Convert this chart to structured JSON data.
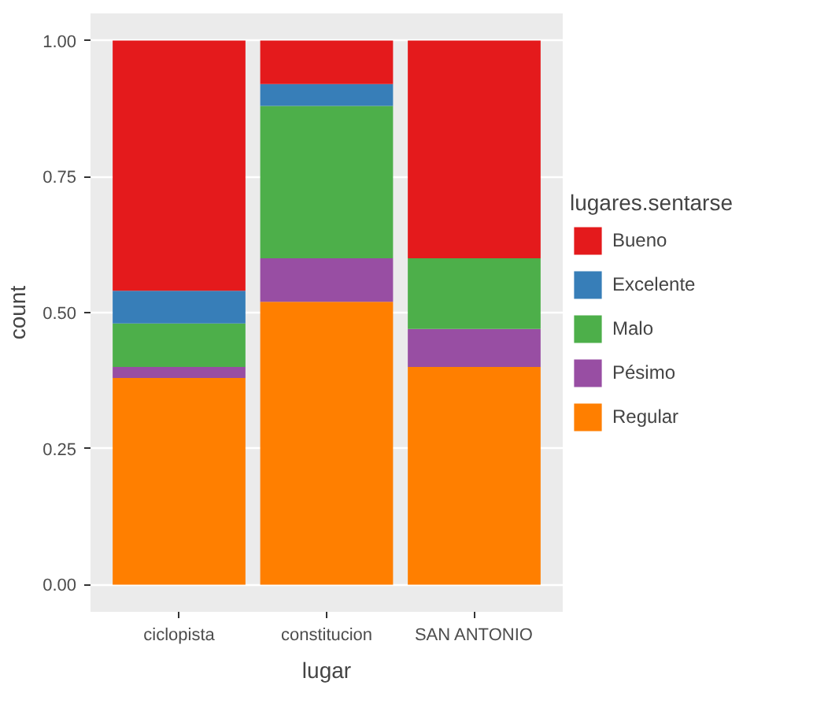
{
  "chart_data": {
    "type": "bar",
    "stacked": true,
    "xlabel": "lugar",
    "ylabel": "count",
    "legend_title": "lugares.sentarse",
    "legend": "right",
    "grid": "y",
    "categories": [
      "ciclopista",
      "constitucion",
      "SAN ANTONIO"
    ],
    "ylim": [
      -0.05,
      1.05
    ],
    "yticks": [
      {
        "value": 0,
        "label": "0.00"
      },
      {
        "value": 0.25,
        "label": "0.25"
      },
      {
        "value": 0.5,
        "label": "0.50"
      },
      {
        "value": 0.75,
        "label": "0.75"
      },
      {
        "value": 1,
        "label": "1.00"
      }
    ],
    "series": [
      {
        "name": "Regular",
        "color": "#ff7f00",
        "values": [
          0.38,
          0.52,
          0.4
        ]
      },
      {
        "name": "Pésimo",
        "color": "#984ea3",
        "values": [
          0.02,
          0.08,
          0.07
        ]
      },
      {
        "name": "Malo",
        "color": "#4daf4a",
        "values": [
          0.08,
          0.28,
          0.13
        ]
      },
      {
        "name": "Excelente",
        "color": "#377eb8",
        "values": [
          0.06,
          0.04,
          0
        ]
      },
      {
        "name": "Bueno",
        "color": "#e41a1c",
        "values": [
          0.46,
          0.08,
          0.4
        ]
      }
    ]
  }
}
